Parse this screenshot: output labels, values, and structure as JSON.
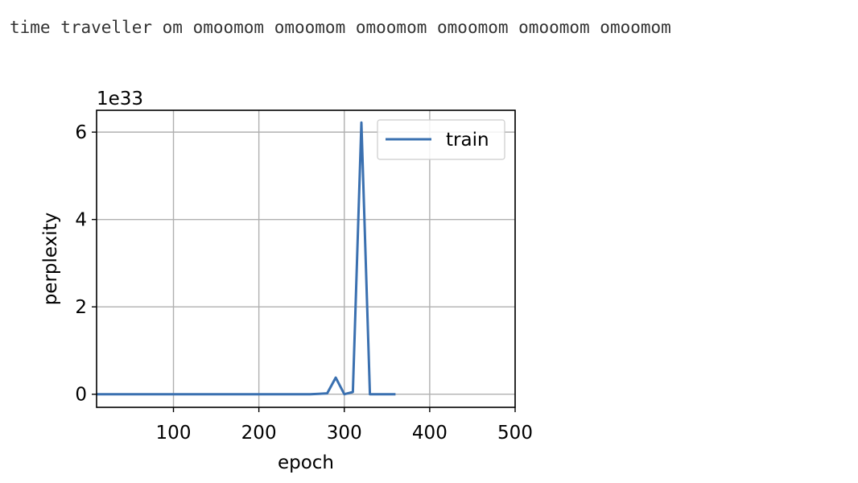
{
  "output_text": "time traveller om omoomom omoomom omoomom omoomom omoomom omoomom",
  "chart_data": {
    "type": "line",
    "xlabel": "epoch",
    "ylabel": "perplexity",
    "offset_text": "1e33",
    "xlim": [
      10,
      500
    ],
    "ylim": [
      -0.3,
      6.5
    ],
    "xticks": [
      100,
      200,
      300,
      400,
      500
    ],
    "yticks": [
      0,
      2,
      4,
      6
    ],
    "grid": true,
    "legend_position": "top-right",
    "series": [
      {
        "name": "train",
        "color": "#3a70b0",
        "x": [
          10,
          20,
          30,
          40,
          50,
          60,
          70,
          80,
          90,
          100,
          110,
          120,
          130,
          140,
          150,
          160,
          170,
          180,
          190,
          200,
          210,
          220,
          230,
          240,
          250,
          260,
          270,
          280,
          290,
          300,
          310,
          320,
          330,
          340,
          350,
          360
        ],
        "y": [
          0,
          0,
          0,
          0,
          0,
          0,
          0,
          0,
          0,
          0,
          0,
          0,
          0,
          0,
          0,
          0,
          0,
          0,
          0,
          0,
          0,
          0,
          0,
          0,
          0,
          0,
          0.01,
          0.02,
          0.38,
          0.0,
          0.05,
          6.22,
          0,
          0,
          0,
          0
        ]
      }
    ]
  }
}
